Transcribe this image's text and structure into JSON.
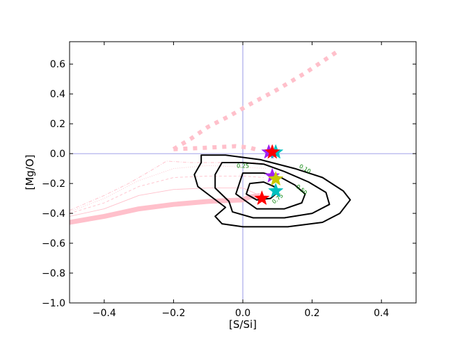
{
  "chart_data": {
    "type": "scatter",
    "title": "",
    "xlabel": "[S/Si]",
    "ylabel": "[Mg/O]",
    "xlim": [
      -0.5,
      0.5
    ],
    "ylim": [
      -1.0,
      0.75
    ],
    "xticks": [
      -0.4,
      -0.2,
      0.0,
      0.2,
      0.4
    ],
    "yticks": [
      -1.0,
      -0.8,
      -0.6,
      -0.4,
      -0.2,
      0.0,
      0.2,
      0.4,
      0.6
    ],
    "xtick_labels": [
      "−0.4",
      "−0.2",
      "0.0",
      "0.2",
      "0.4"
    ],
    "ytick_labels": [
      "−1.0",
      "−0.8",
      "−0.6",
      "−0.4",
      "−0.2",
      "0.0",
      "0.2",
      "0.4",
      "0.6"
    ],
    "reference_lines": {
      "x": 0.0,
      "y": 0.0,
      "color": "#8080e0"
    },
    "contours": [
      {
        "level": "0.10",
        "label_at": [
          0.18,
          -0.1
        ],
        "label_angle": 30,
        "points": [
          [
            -0.12,
            -0.01
          ],
          [
            -0.05,
            -0.01
          ],
          [
            0.05,
            -0.04
          ],
          [
            0.15,
            -0.1
          ],
          [
            0.23,
            -0.16
          ],
          [
            0.29,
            -0.25
          ],
          [
            0.31,
            -0.31
          ],
          [
            0.28,
            -0.4
          ],
          [
            0.23,
            -0.46
          ],
          [
            0.13,
            -0.49
          ],
          [
            0.0,
            -0.49
          ],
          [
            -0.06,
            -0.47
          ],
          [
            -0.08,
            -0.42
          ],
          [
            -0.05,
            -0.36
          ],
          [
            -0.09,
            -0.29
          ],
          [
            -0.13,
            -0.22
          ],
          [
            -0.14,
            -0.14
          ],
          [
            -0.12,
            -0.06
          ],
          [
            -0.12,
            -0.01
          ]
        ]
      },
      {
        "level": "0.25",
        "label_at": [
          0.0,
          -0.08
        ],
        "label_angle": 0,
        "points": [
          [
            -0.06,
            -0.06
          ],
          [
            0.0,
            -0.06
          ],
          [
            0.06,
            -0.07
          ],
          [
            0.12,
            -0.12
          ],
          [
            0.19,
            -0.19
          ],
          [
            0.24,
            -0.26
          ],
          [
            0.25,
            -0.34
          ],
          [
            0.2,
            -0.4
          ],
          [
            0.12,
            -0.43
          ],
          [
            0.03,
            -0.43
          ],
          [
            -0.03,
            -0.39
          ],
          [
            -0.04,
            -0.32
          ],
          [
            -0.08,
            -0.23
          ],
          [
            -0.08,
            -0.14
          ],
          [
            -0.06,
            -0.06
          ]
        ]
      },
      {
        "level": "0.50",
        "label_at": [
          0.17,
          -0.24
        ],
        "label_angle": 40,
        "points": [
          [
            0.0,
            -0.13
          ],
          [
            0.06,
            -0.13
          ],
          [
            0.11,
            -0.16
          ],
          [
            0.15,
            -0.21
          ],
          [
            0.18,
            -0.27
          ],
          [
            0.17,
            -0.33
          ],
          [
            0.12,
            -0.37
          ],
          [
            0.04,
            -0.37
          ],
          [
            0.01,
            -0.32
          ],
          [
            -0.02,
            -0.27
          ],
          [
            -0.01,
            -0.2
          ],
          [
            0.0,
            -0.13
          ]
        ]
      },
      {
        "level": "0.75",
        "label_at": [
          0.1,
          -0.3
        ],
        "label_angle": -40,
        "points": [
          [
            0.02,
            -0.2
          ],
          [
            0.06,
            -0.19
          ],
          [
            0.09,
            -0.22
          ],
          [
            0.1,
            -0.26
          ],
          [
            0.08,
            -0.3
          ],
          [
            0.04,
            -0.31
          ],
          [
            0.01,
            -0.27
          ],
          [
            0.02,
            -0.2
          ]
        ]
      }
    ],
    "model_tracks": [
      {
        "style": "thick-solid",
        "color": "#ffc0cb",
        "points": [
          [
            -0.5,
            -0.46
          ],
          [
            -0.4,
            -0.42
          ],
          [
            -0.3,
            -0.37
          ],
          [
            -0.2,
            -0.34
          ],
          [
            -0.1,
            -0.32
          ],
          [
            0.0,
            -0.31
          ],
          [
            0.02,
            -0.29
          ],
          [
            0.05,
            -0.28
          ]
        ]
      },
      {
        "style": "thick-dotted",
        "color": "#ffc0cb",
        "points": [
          [
            -0.2,
            0.03
          ],
          [
            -0.1,
            0.04
          ],
          [
            -0.02,
            0.05
          ],
          [
            0.02,
            0.04
          ],
          [
            0.05,
            0.02
          ]
        ]
      },
      {
        "style": "thick-dotted",
        "color": "#ffc0cb",
        "points": [
          [
            -0.2,
            0.03
          ],
          [
            -0.15,
            0.1
          ],
          [
            -0.1,
            0.18
          ],
          [
            -0.04,
            0.25
          ],
          [
            0.02,
            0.33
          ],
          [
            0.1,
            0.43
          ],
          [
            0.18,
            0.54
          ],
          [
            0.27,
            0.68
          ]
        ]
      },
      {
        "style": "thin-solid",
        "color": "#ffc0cb",
        "points": [
          [
            -0.5,
            -0.42
          ],
          [
            -0.4,
            -0.37
          ],
          [
            -0.3,
            -0.28
          ],
          [
            -0.2,
            -0.24
          ],
          [
            -0.1,
            -0.23
          ],
          [
            0.0,
            -0.23
          ],
          [
            0.04,
            -0.27
          ]
        ]
      },
      {
        "style": "thin-dashed",
        "color": "#ffc0cb",
        "points": [
          [
            -0.5,
            -0.4
          ],
          [
            -0.4,
            -0.33
          ],
          [
            -0.3,
            -0.22
          ],
          [
            -0.2,
            -0.16
          ],
          [
            -0.1,
            -0.15
          ],
          [
            0.0,
            -0.15
          ],
          [
            0.06,
            -0.16
          ]
        ]
      },
      {
        "style": "thin-dotted",
        "color": "#ffc0cb",
        "points": [
          [
            -0.5,
            -0.39
          ],
          [
            -0.4,
            -0.3
          ],
          [
            -0.3,
            -0.18
          ],
          [
            -0.2,
            -0.1
          ],
          [
            -0.1,
            -0.08
          ],
          [
            0.0,
            -0.09
          ],
          [
            0.07,
            -0.1
          ]
        ]
      },
      {
        "style": "thin-dashdot",
        "color": "#ffc0cb",
        "points": [
          [
            -0.5,
            -0.38
          ],
          [
            -0.4,
            -0.28
          ],
          [
            -0.33,
            -0.2
          ],
          [
            -0.27,
            -0.12
          ],
          [
            -0.22,
            -0.05
          ],
          [
            -0.15,
            -0.06
          ],
          [
            -0.05,
            -0.06
          ],
          [
            0.03,
            -0.06
          ],
          [
            0.08,
            -0.07
          ]
        ]
      }
    ],
    "stars": [
      {
        "x": 0.075,
        "y": 0.01,
        "color": "#a020f0"
      },
      {
        "x": 0.095,
        "y": 0.01,
        "color": "#00c0c0"
      },
      {
        "x": 0.085,
        "y": 0.01,
        "color": "#ff0000"
      },
      {
        "x": 0.085,
        "y": -0.15,
        "color": "#a020f0"
      },
      {
        "x": 0.095,
        "y": -0.17,
        "color": "#c8c800"
      },
      {
        "x": 0.095,
        "y": -0.25,
        "color": "#00c0c0"
      },
      {
        "x": 0.055,
        "y": -0.3,
        "color": "#ff0000"
      }
    ]
  }
}
